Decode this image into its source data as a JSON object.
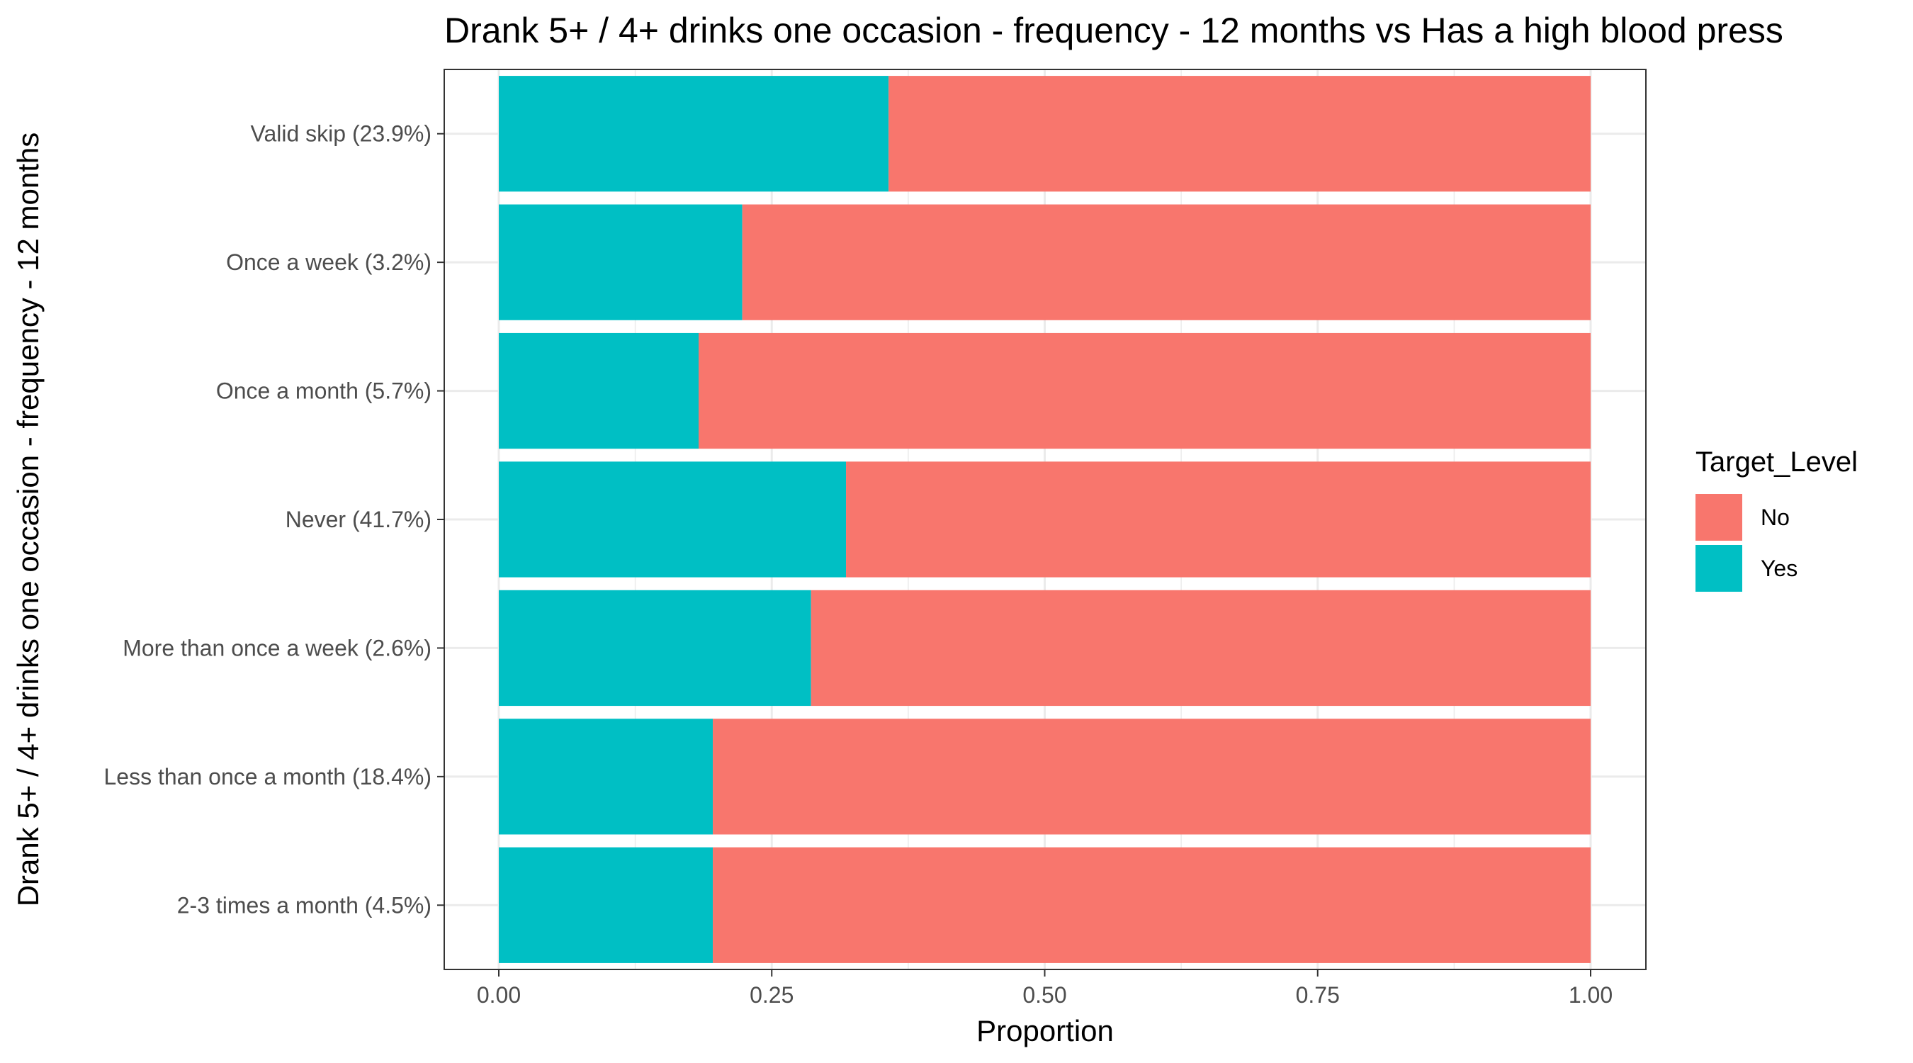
{
  "chart_data": {
    "type": "bar",
    "orientation": "horizontal",
    "stacked": true,
    "title": "Drank 5+ / 4+ drinks one occasion - frequency - 12 months vs Has a high blood press",
    "xlabel": "Proportion",
    "ylabel": "Drank 5+ / 4+ drinks one occasion - frequency - 12 months",
    "xlim": [
      0,
      1
    ],
    "x_ticks": [
      "0.00",
      "0.25",
      "0.50",
      "0.75",
      "1.00"
    ],
    "x_tick_values": [
      0,
      0.25,
      0.5,
      0.75,
      1.0
    ],
    "grid": true,
    "legend_position": "right",
    "categories": [
      "Valid skip (23.9%)",
      "Once a week (3.2%)",
      "Once a month (5.7%)",
      "Never (41.7%)",
      "More than once a week (2.6%)",
      "Less than once a month (18.4%)",
      "2-3 times a month (4.5%)"
    ],
    "series": [
      {
        "name": "Yes",
        "color": "#00BFC4",
        "values": [
          0.357,
          0.223,
          0.183,
          0.318,
          0.286,
          0.196,
          0.196
        ]
      },
      {
        "name": "No",
        "color": "#F8766D",
        "values": [
          0.643,
          0.777,
          0.817,
          0.682,
          0.714,
          0.804,
          0.804
        ]
      }
    ],
    "legend": {
      "title": "Target_Level",
      "entries": [
        {
          "label": "No",
          "color": "#F8766D"
        },
        {
          "label": "Yes",
          "color": "#00BFC4"
        }
      ]
    }
  }
}
